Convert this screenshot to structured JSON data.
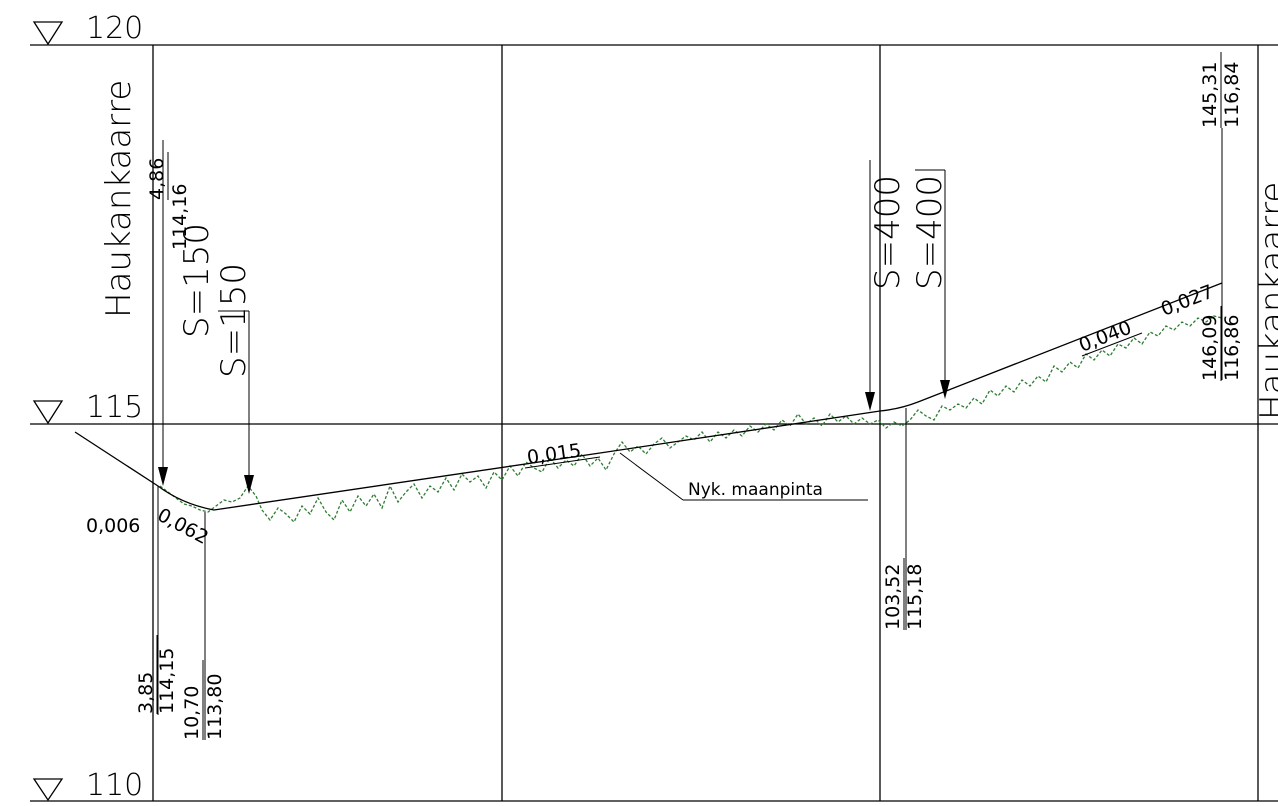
{
  "levels": {
    "top": "120",
    "mid": "115",
    "bottom": "110"
  },
  "road_name": "Haukankaarre",
  "curves": {
    "s150": "S=150",
    "s400": "S=400"
  },
  "slopes": {
    "a": "0,006",
    "b": "0,062",
    "c": "0,015",
    "d": "0,040",
    "e": "0,027"
  },
  "stations": {
    "p1_top": "4,86",
    "p1_bottom": "114,16",
    "p2_top": "3,85",
    "p2_bottom": "114,15",
    "p3_top": "10,70",
    "p3_bottom": "113,80",
    "p4_top": "103,52",
    "p4_bottom": "115,18",
    "p5_top": "146,09",
    "p5_bottom": "116,86",
    "p6_top": "145,31",
    "p6_bottom": "116,84"
  },
  "ground_label": "Nyk. maanpinta",
  "colors": {
    "line": "#000000",
    "ground": "#2e7d32"
  }
}
